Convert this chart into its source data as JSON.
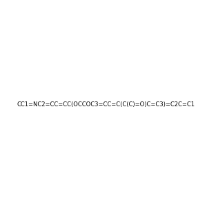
{
  "smiles": "CC1=NC2=CC=CC(OCCOC3=CC=C(C(C)=O)C=C3)=C2C=C1",
  "title": "",
  "background_color": "#e8e8e8",
  "bond_color": "#000000",
  "atom_colors": {
    "N": "#0000ff",
    "O": "#ff0000",
    "C": "#000000"
  },
  "fig_width": 3.0,
  "fig_height": 3.0,
  "dpi": 100
}
